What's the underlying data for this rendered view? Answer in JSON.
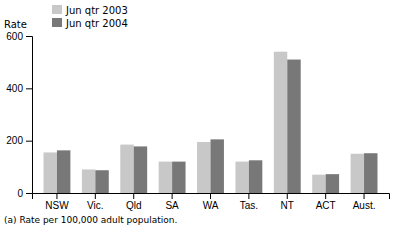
{
  "chart_data": {
    "type": "bar",
    "y_label": "Rate",
    "annotations": [
      "(a) Rate per 100,000 adult population."
    ],
    "categories": [
      "NSW",
      "Vic.",
      "Qld",
      "SA",
      "WA",
      "Tas.",
      "NT",
      "ACT",
      "Aust."
    ],
    "series": [
      {
        "name": "Jun qtr 2003",
        "color": "#c8c8c8",
        "values": [
          155,
          90,
          185,
          120,
          195,
          120,
          540,
          70,
          150
        ]
      },
      {
        "name": "Jun qtr 2004",
        "color": "#787878",
        "values": [
          163,
          87,
          178,
          120,
          205,
          125,
          510,
          72,
          152
        ]
      }
    ],
    "ylim": [
      0,
      600
    ],
    "yticks": [
      0,
      200,
      400,
      600
    ],
    "grid": false,
    "legend": "top-left"
  }
}
